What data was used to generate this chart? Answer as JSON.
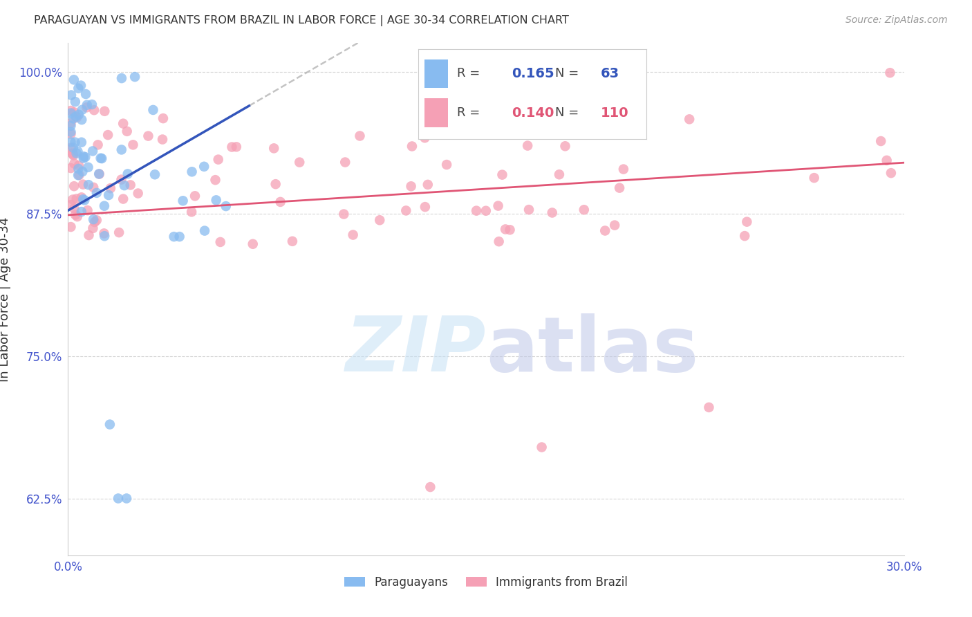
{
  "title": "PARAGUAYAN VS IMMIGRANTS FROM BRAZIL IN LABOR FORCE | AGE 30-34 CORRELATION CHART",
  "source": "Source: ZipAtlas.com",
  "ylabel": "In Labor Force | Age 30-34",
  "xlim": [
    0.0,
    0.3
  ],
  "ylim": [
    0.575,
    1.025
  ],
  "xtick_labels": [
    "0.0%",
    "",
    "",
    "",
    "",
    "",
    "30.0%"
  ],
  "xtick_vals": [
    0.0,
    0.05,
    0.1,
    0.15,
    0.2,
    0.25,
    0.3
  ],
  "ytick_labels": [
    "62.5%",
    "75.0%",
    "87.5%",
    "100.0%"
  ],
  "ytick_vals": [
    0.625,
    0.75,
    0.875,
    1.0
  ],
  "blue_color": "#88BBF0",
  "pink_color": "#F5A0B5",
  "blue_line_color": "#3355BB",
  "pink_line_color": "#E05575",
  "gray_dash_color": "#AAAAAA",
  "legend_R_blue": "0.165",
  "legend_N_blue": "63",
  "legend_R_pink": "0.140",
  "legend_N_pink": "110",
  "legend_label_blue": "Paraguayans",
  "legend_label_pink": "Immigrants from Brazil",
  "tick_color": "#4455CC",
  "axis_label_color": "#333333",
  "source_color": "#999999",
  "title_color": "#333333",
  "grid_color": "#CCCCCC",
  "watermark_zip_color": "#C5E0F5",
  "watermark_atlas_color": "#BFC8E8"
}
